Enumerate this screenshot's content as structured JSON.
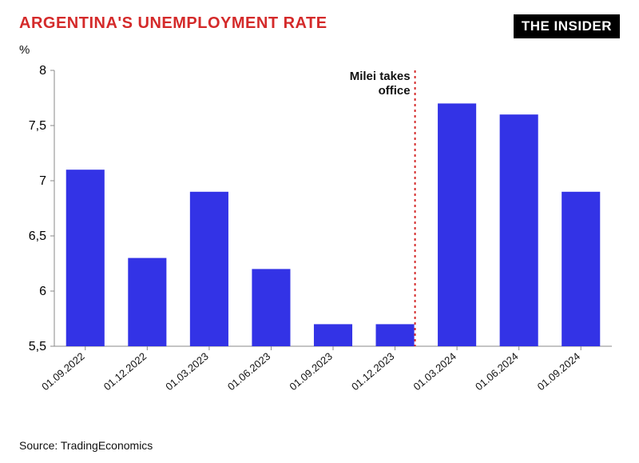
{
  "header": {
    "title": "ARGENTINA'S UNEMPLOYMENT RATE",
    "logo": "THE INSIDER",
    "unit": "%"
  },
  "source_label": "Source: TradingEconomics",
  "chart": {
    "type": "bar",
    "categories": [
      "01.09.2022",
      "01.12.2022",
      "01.03.2023",
      "01.06.2023",
      "01.09.2023",
      "01.12.2023",
      "01.03.2024",
      "01.06.2024",
      "01.09.2024"
    ],
    "values": [
      7.1,
      6.3,
      6.9,
      6.2,
      5.7,
      5.7,
      7.7,
      7.6,
      6.9
    ],
    "bar_color": "#3333e6",
    "background_color": "#ffffff",
    "axis_color": "#888888",
    "yaxis": {
      "min": 5.5,
      "max": 8.0,
      "ticks": [
        5.5,
        6.0,
        6.5,
        7.0,
        7.5,
        8.0
      ],
      "tick_labels": [
        "5,5",
        "6",
        "6,5",
        "7",
        "7,5",
        "8"
      ],
      "label_fontsize": 14
    },
    "xaxis": {
      "rotation_deg": -40,
      "label_fontsize": 13
    },
    "bar_width_ratio": 0.62,
    "annotation": {
      "label_line1": "Milei takes",
      "label_line2": "office",
      "after_category_index": 5,
      "line_color": "#d42a2a",
      "line_dash": "3,4",
      "line_width": 2
    }
  }
}
